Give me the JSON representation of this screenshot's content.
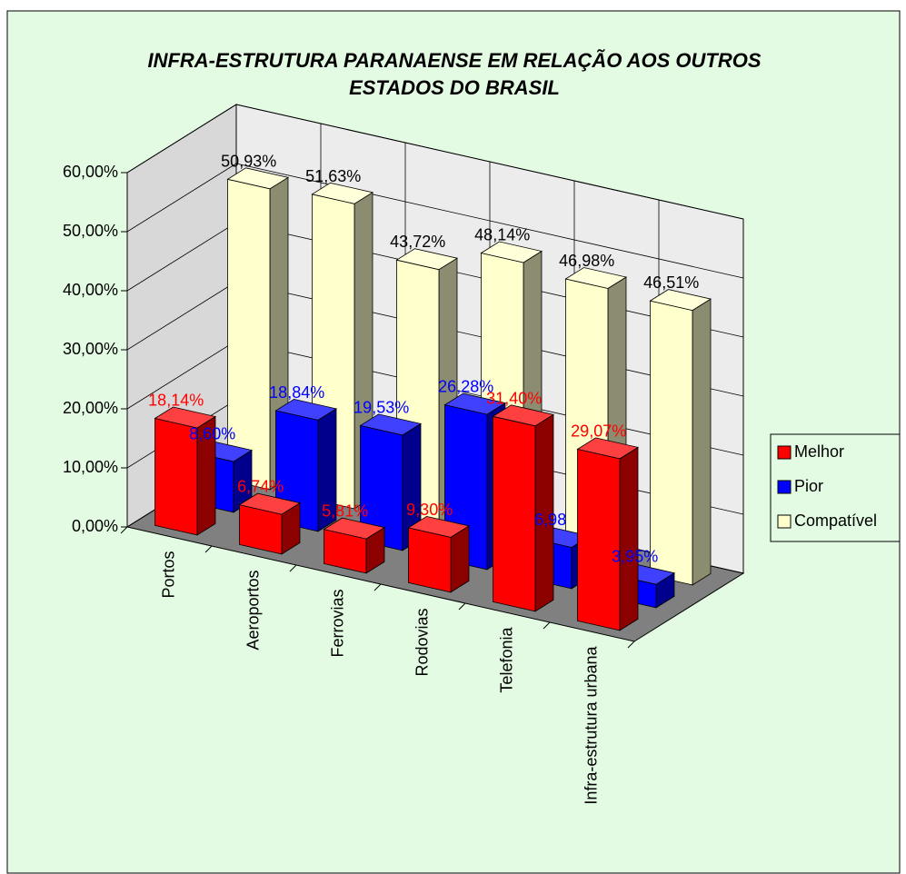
{
  "chart_data": {
    "type": "bar3d",
    "title": [
      "INFRA-ESTRUTURA PARANAENSE EM RELAÇÃO AOS OUTROS",
      "ESTADOS DO BRASIL"
    ],
    "categories": [
      "Portos",
      "Aeroportos",
      "Ferrovias",
      "Rodovias",
      "Telefonia",
      "Infra-estrutura urbana"
    ],
    "series": [
      {
        "name": "Melhor",
        "color": "#ff0000",
        "label_color": "#ff0000",
        "values": [
          18.14,
          6.74,
          5.81,
          9.3,
          31.4,
          29.07
        ],
        "value_labels": [
          "18,14%",
          "6,74%",
          "5,81%",
          "9,30%",
          "31,40%",
          "29,07%"
        ]
      },
      {
        "name": "Pior",
        "color": "#0000ff",
        "label_color": "#0000ff",
        "values": [
          8.6,
          18.84,
          19.53,
          26.28,
          6.98,
          3.95
        ],
        "value_labels": [
          "8,60%",
          "18,84%",
          "19,53%",
          "26,28%",
          "6,98",
          "3,95%"
        ]
      },
      {
        "name": "Compatível",
        "color": "#ffffcc",
        "label_color": "#000000",
        "values": [
          50.93,
          51.63,
          43.72,
          48.14,
          46.98,
          46.51
        ],
        "value_labels": [
          "50,93%",
          "51,63%",
          "43,72%",
          "48,14%",
          "46,98%",
          "46,51%"
        ]
      }
    ],
    "ylim": [
      0,
      60
    ],
    "yticks": [
      {
        "value": 0,
        "label": "0,00%"
      },
      {
        "value": 10,
        "label": "10,00%"
      },
      {
        "value": 20,
        "label": "20,00%"
      },
      {
        "value": 30,
        "label": "30,00%"
      },
      {
        "value": 40,
        "label": "40,00%"
      },
      {
        "value": 50,
        "label": "50,00%"
      },
      {
        "value": 60,
        "label": "60,00%"
      }
    ],
    "grid": true,
    "legend": "right"
  }
}
